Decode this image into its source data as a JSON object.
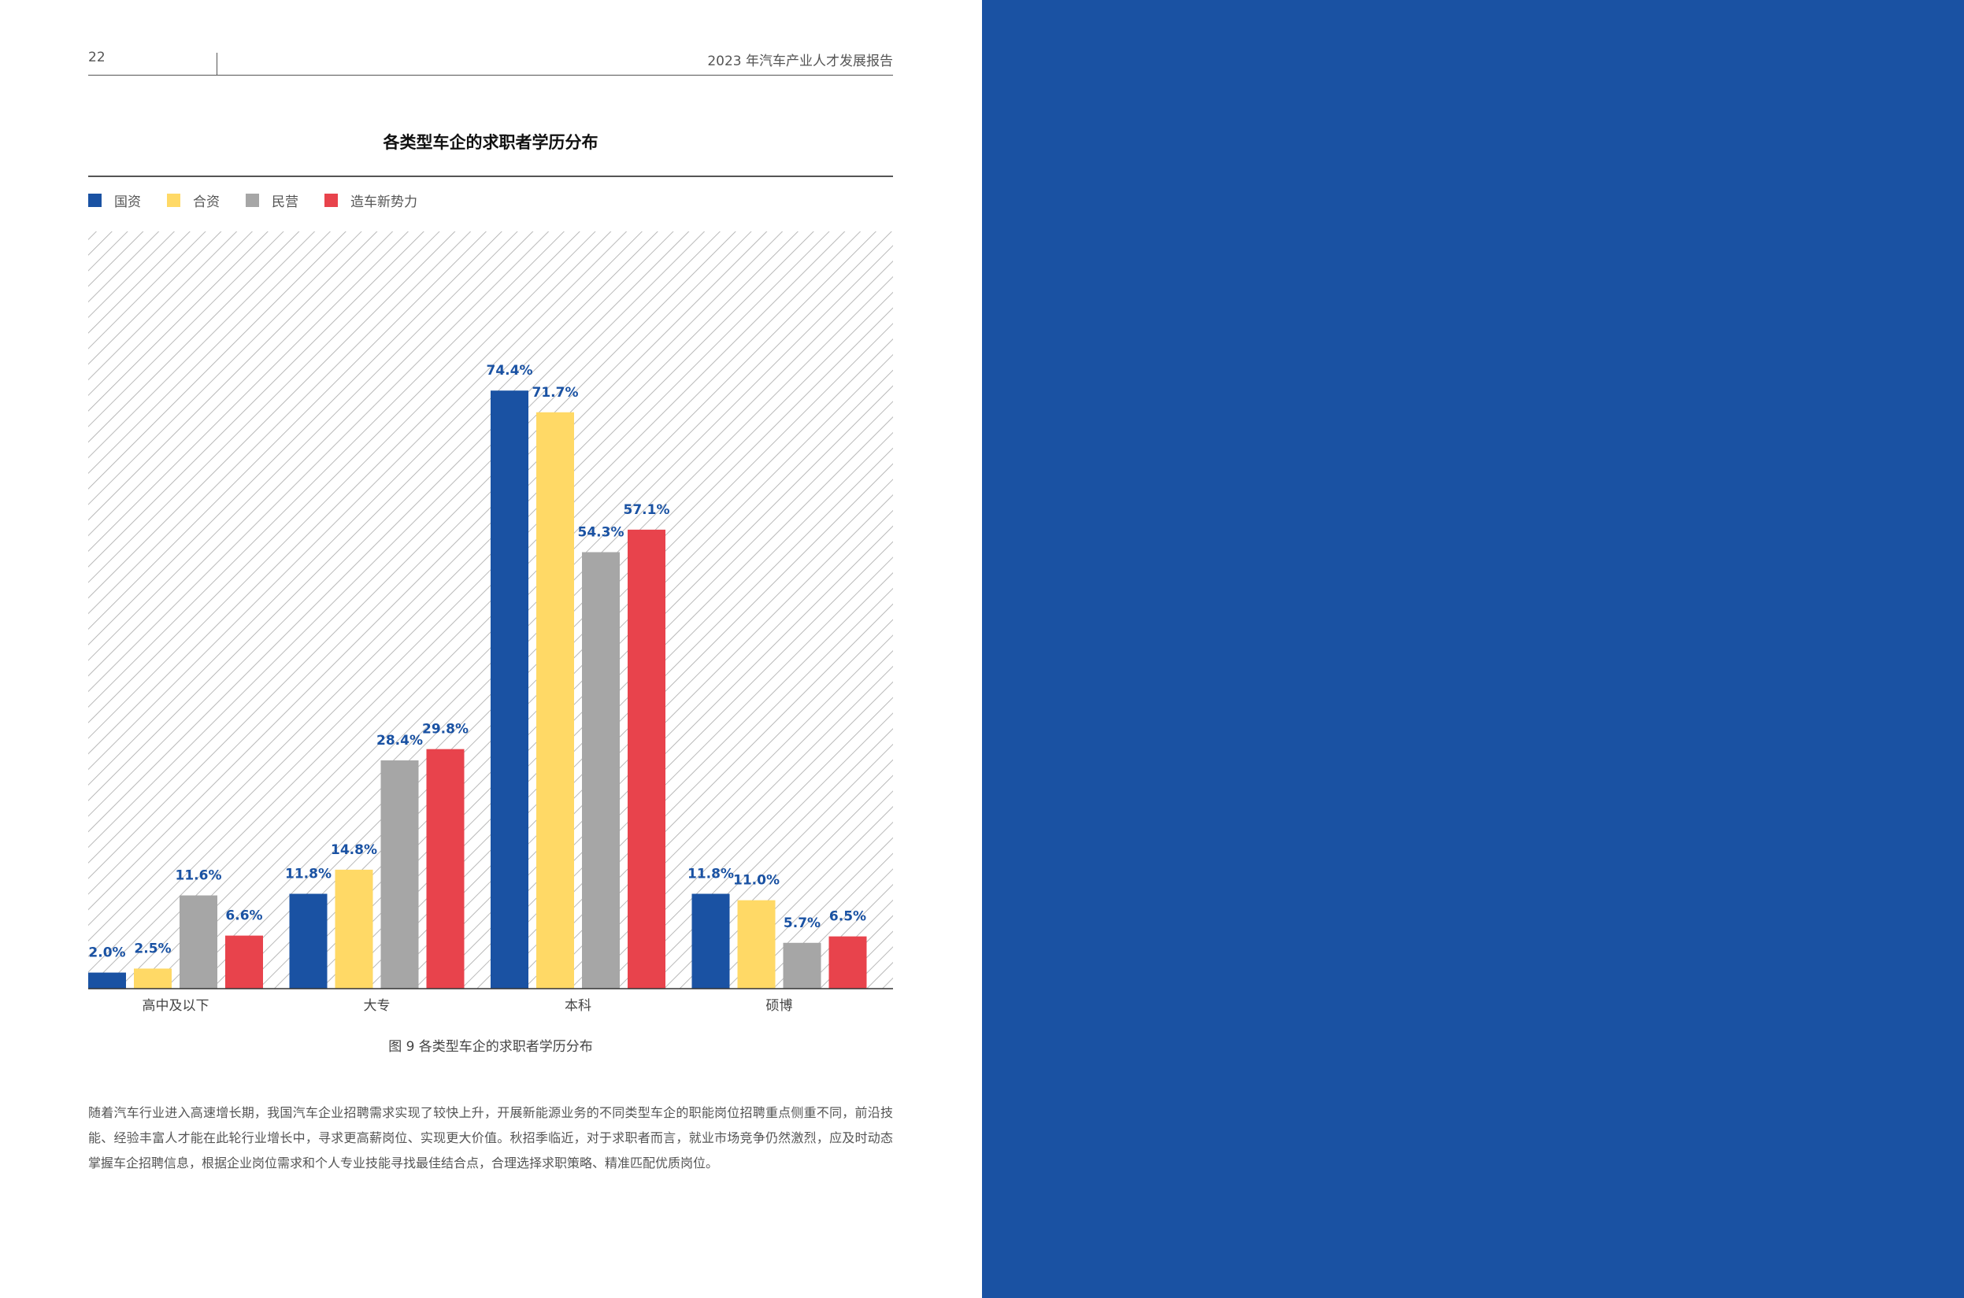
{
  "header": {
    "page_number": "22",
    "report_title": "2023 年汽车产业人才发展报告"
  },
  "colors": {
    "state_owned": "#1a52a3",
    "joint_venture": "#ffd966",
    "private": "#a6a6a6",
    "new_force": "#e8434c",
    "label_text": "#1a52a3",
    "right_panel": "#1a52a3"
  },
  "chart_data": {
    "type": "bar",
    "title": "各类型车企的求职者学历分布",
    "categories": [
      "高中及以下",
      "大专",
      "本科",
      "硕博"
    ],
    "series": [
      {
        "name": "国资",
        "color": "#1a52a3",
        "values": [
          2.0,
          11.8,
          74.4,
          11.8
        ],
        "labels": [
          "2.0%",
          "11.8%",
          "74.4%",
          "11.8%"
        ]
      },
      {
        "name": "合资",
        "color": "#ffd966",
        "values": [
          2.5,
          14.8,
          71.7,
          11.0
        ],
        "labels": [
          "2.5%",
          "14.8%",
          "71.7%",
          "11.0%"
        ]
      },
      {
        "name": "民营",
        "color": "#a6a6a6",
        "values": [
          11.6,
          28.4,
          54.3,
          5.7
        ],
        "labels": [
          "11.6%",
          "28.4%",
          "54.3%",
          "5.7%"
        ]
      },
      {
        "name": "造车新势力",
        "color": "#e8434c",
        "values": [
          6.6,
          29.8,
          57.1,
          6.5
        ],
        "labels": [
          "6.6%",
          "29.8%",
          "57.1%",
          "6.5%"
        ]
      }
    ],
    "ylim": [
      0,
      94.2
    ],
    "legend_position": "top-left",
    "grid": false,
    "background": "diagonal-hatch"
  },
  "caption": "图 9 各类型车企的求职者学历分布",
  "body_text": "随着汽车行业进入高速增长期，我国汽车企业招聘需求实现了较快上升，开展新能源业务的不同类型车企的职能岗位招聘重点侧重不同，前沿技能、经验丰富人才能在此轮行业增长中，寻求更高薪岗位、实现更大价值。秋招季临近，对于求职者而言，就业市场竞争仍然激烈，应及时动态掌握车企招聘信息，根据企业岗位需求和个人专业技能寻找最佳结合点，合理选择求职策略、精准匹配优质岗位。"
}
